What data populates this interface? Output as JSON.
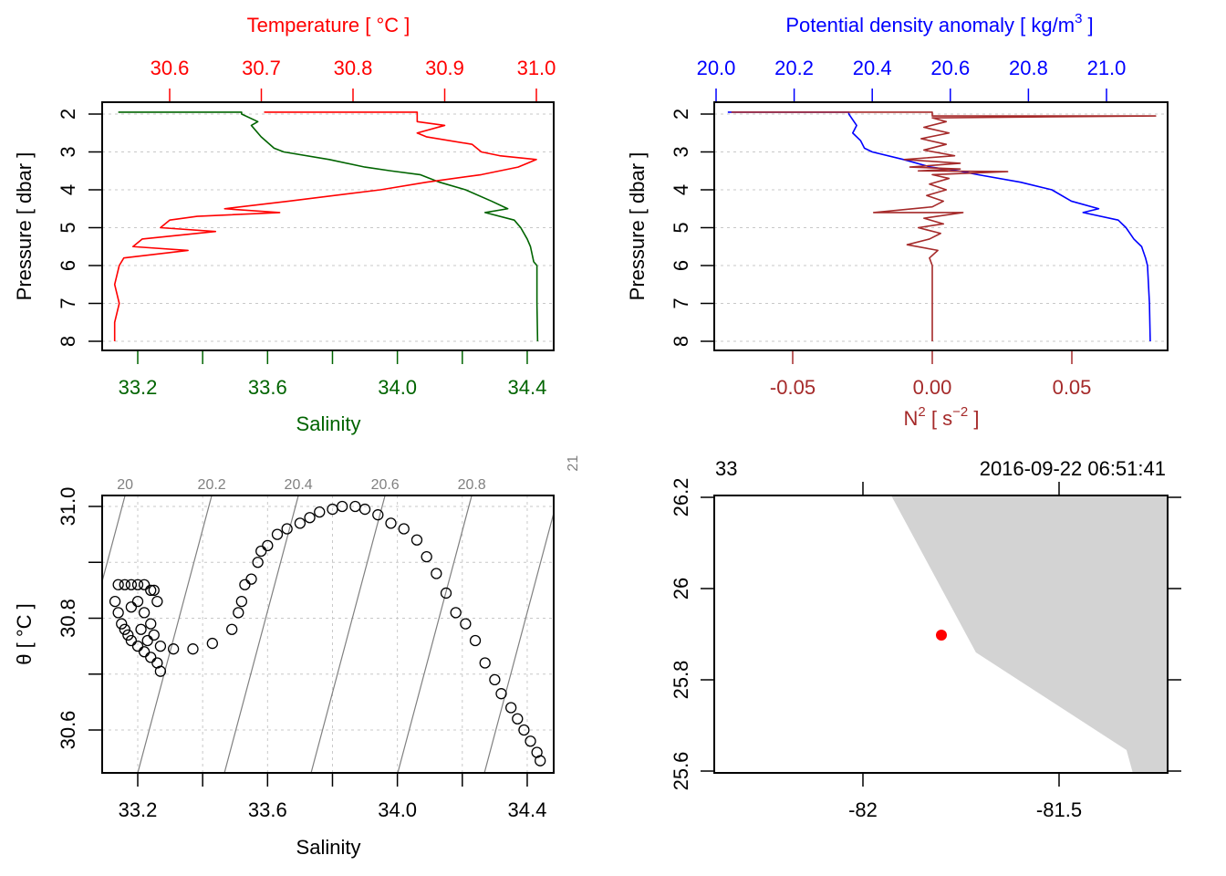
{
  "colors": {
    "temperature": "#ff0000",
    "salinity": "#006400",
    "density": "#0000ff",
    "n2": "#a52a2a",
    "land": "#d3d3d3",
    "station": "#ff0000",
    "isopycnal": "#808080"
  },
  "chart_data": [
    {
      "type": "line",
      "title": "Temperature [ °C ]",
      "xlabel": "Salinity",
      "ylabel": "Pressure [ dbar ]",
      "temperature_ticks": [
        "30.6",
        "30.7",
        "30.8",
        "30.9",
        "31.0"
      ],
      "salinity_ticks": [
        "33.2",
        "33.6",
        "34.0",
        "34.4"
      ],
      "salinity_minor": [
        33.4,
        33.8,
        34.2
      ],
      "pressure_ticks": [
        "2",
        "3",
        "4",
        "5",
        "6",
        "7",
        "8"
      ],
      "ylim": [
        8,
        2
      ],
      "series": [
        {
          "name": "Temperature",
          "points": [
            [
              1.95,
              30.703
            ],
            [
              1.95,
              30.87
            ],
            [
              2.0,
              30.87
            ],
            [
              2.2,
              30.87
            ],
            [
              2.3,
              30.9
            ],
            [
              2.5,
              30.87
            ],
            [
              2.6,
              30.88
            ],
            [
              2.8,
              30.93
            ],
            [
              3.0,
              30.94
            ],
            [
              3.1,
              30.96
            ],
            [
              3.2,
              31.0
            ],
            [
              3.3,
              30.99
            ],
            [
              3.4,
              30.98
            ],
            [
              3.6,
              30.94
            ],
            [
              3.8,
              30.88
            ],
            [
              4.0,
              30.83
            ],
            [
              4.3,
              30.73
            ],
            [
              4.5,
              30.66
            ],
            [
              4.6,
              30.72
            ],
            [
              4.7,
              30.63
            ],
            [
              4.8,
              30.6
            ],
            [
              5.0,
              30.59
            ],
            [
              5.1,
              30.65
            ],
            [
              5.3,
              30.57
            ],
            [
              5.5,
              30.56
            ],
            [
              5.6,
              30.62
            ],
            [
              5.8,
              30.55
            ],
            [
              6.0,
              30.545
            ],
            [
              6.5,
              30.54
            ],
            [
              7.0,
              30.545
            ],
            [
              7.5,
              30.54
            ],
            [
              8.0,
              30.54
            ]
          ]
        },
        {
          "name": "Salinity",
          "points": [
            [
              1.95,
              33.14
            ],
            [
              1.95,
              33.52
            ],
            [
              2.0,
              33.52
            ],
            [
              2.2,
              33.57
            ],
            [
              2.3,
              33.55
            ],
            [
              2.6,
              33.58
            ],
            [
              2.9,
              33.62
            ],
            [
              3.0,
              33.65
            ],
            [
              3.2,
              33.79
            ],
            [
              3.4,
              33.9
            ],
            [
              3.5,
              33.98
            ],
            [
              3.6,
              34.07
            ],
            [
              3.8,
              34.13
            ],
            [
              4.0,
              34.21
            ],
            [
              4.3,
              34.29
            ],
            [
              4.5,
              34.34
            ],
            [
              4.6,
              34.27
            ],
            [
              4.8,
              34.36
            ],
            [
              5.0,
              34.38
            ],
            [
              5.3,
              34.4
            ],
            [
              5.5,
              34.41
            ],
            [
              5.9,
              34.42
            ],
            [
              6.0,
              34.43
            ],
            [
              7.0,
              34.43
            ],
            [
              8.0,
              34.432
            ]
          ]
        }
      ]
    },
    {
      "type": "line",
      "title": "Potential density anomaly [ kg/m",
      "title_sup": "3",
      "title_end": " ]",
      "xlabel": "N",
      "xlabel_sup1": "2",
      "xlabel_mid": " [ s",
      "xlabel_sup2": "−2",
      "xlabel_end": " ]",
      "ylabel": "Pressure [ dbar ]",
      "density_ticks": [
        "20.0",
        "20.2",
        "20.4",
        "20.6",
        "20.8",
        "21.0"
      ],
      "n2_ticks": [
        "-0.05",
        "0.00",
        "0.05"
      ],
      "pressure_ticks": [
        "2",
        "3",
        "4",
        "5",
        "6",
        "7",
        "8"
      ],
      "ylim": [
        8,
        2
      ],
      "series": [
        {
          "name": "Potential density anomaly",
          "points": [
            [
              1.95,
              20.03
            ],
            [
              1.95,
              20.34
            ],
            [
              2.0,
              20.34
            ],
            [
              2.3,
              20.36
            ],
            [
              2.5,
              20.35
            ],
            [
              2.7,
              20.37
            ],
            [
              2.9,
              20.38
            ],
            [
              3.0,
              20.4
            ],
            [
              3.2,
              20.48
            ],
            [
              3.4,
              20.55
            ],
            [
              3.5,
              20.62
            ],
            [
              3.6,
              20.67
            ],
            [
              3.8,
              20.78
            ],
            [
              4.0,
              20.86
            ],
            [
              4.3,
              20.91
            ],
            [
              4.5,
              20.98
            ],
            [
              4.6,
              20.94
            ],
            [
              4.8,
              21.03
            ],
            [
              5.0,
              21.05
            ],
            [
              5.3,
              21.07
            ],
            [
              5.5,
              21.09
            ],
            [
              5.8,
              21.1
            ],
            [
              6.0,
              21.105
            ],
            [
              7.0,
              21.11
            ],
            [
              8.0,
              21.112
            ]
          ]
        },
        {
          "name": "N2",
          "points": [
            [
              1.95,
              -0.072
            ],
            [
              1.95,
              0.0
            ],
            [
              2.05,
              0.0
            ],
            [
              2.05,
              0.08
            ],
            [
              2.1,
              0.0
            ],
            [
              2.2,
              0.005
            ],
            [
              2.35,
              -0.003
            ],
            [
              2.5,
              0.006
            ],
            [
              2.65,
              -0.004
            ],
            [
              2.8,
              0.005
            ],
            [
              2.95,
              -0.003
            ],
            [
              3.1,
              0.008
            ],
            [
              3.2,
              -0.01
            ],
            [
              3.3,
              0.01
            ],
            [
              3.4,
              -0.008
            ],
            [
              3.45,
              0.01
            ],
            [
              3.5,
              -0.005
            ],
            [
              3.52,
              0.027
            ],
            [
              3.6,
              0.0
            ],
            [
              3.7,
              0.006
            ],
            [
              3.85,
              -0.001
            ],
            [
              4.0,
              0.005
            ],
            [
              4.15,
              -0.002
            ],
            [
              4.3,
              0.004
            ],
            [
              4.45,
              0.0
            ],
            [
              4.6,
              -0.021
            ],
            [
              4.6,
              0.011
            ],
            [
              4.75,
              -0.003
            ],
            [
              4.9,
              0.004
            ],
            [
              5.0,
              -0.005
            ],
            [
              5.15,
              0.003
            ],
            [
              5.3,
              -0.001
            ],
            [
              5.45,
              -0.009
            ],
            [
              5.6,
              0.002
            ],
            [
              5.8,
              -0.001
            ],
            [
              6.0,
              0.0
            ],
            [
              7.0,
              0.0
            ],
            [
              8.0,
              0.0
            ]
          ]
        }
      ]
    },
    {
      "type": "scatter",
      "xlabel": "Salinity",
      "ylabel": "θ [ °C ]",
      "salinity_ticks": [
        "33.2",
        "33.6",
        "34.0",
        "34.4"
      ],
      "theta_ticks": [
        "30.6",
        "30.8",
        "31.0"
      ],
      "isopycnal_labels": [
        "20",
        "20.2",
        "20.4",
        "20.6",
        "20.8",
        "21"
      ],
      "isopycnal_levels": [
        20.0,
        20.2,
        20.4,
        20.6,
        20.8,
        21.0
      ],
      "points": [
        [
          33.14,
          30.86
        ],
        [
          33.16,
          30.86
        ],
        [
          33.18,
          30.86
        ],
        [
          33.2,
          30.86
        ],
        [
          33.22,
          30.86
        ],
        [
          33.24,
          30.85
        ],
        [
          33.13,
          30.83
        ],
        [
          33.14,
          30.81
        ],
        [
          33.15,
          30.79
        ],
        [
          33.16,
          30.78
        ],
        [
          33.17,
          30.77
        ],
        [
          33.18,
          30.76
        ],
        [
          33.2,
          30.75
        ],
        [
          33.22,
          30.74
        ],
        [
          33.24,
          30.73
        ],
        [
          33.26,
          30.72
        ],
        [
          33.27,
          30.705
        ],
        [
          33.2,
          30.83
        ],
        [
          33.22,
          30.81
        ],
        [
          33.24,
          30.79
        ],
        [
          33.25,
          30.77
        ],
        [
          33.27,
          30.75
        ],
        [
          33.18,
          30.82
        ],
        [
          33.21,
          30.78
        ],
        [
          33.23,
          30.76
        ],
        [
          33.26,
          30.83
        ],
        [
          33.25,
          30.85
        ],
        [
          33.31,
          30.745
        ],
        [
          33.37,
          30.745
        ],
        [
          33.43,
          30.755
        ],
        [
          33.49,
          30.78
        ],
        [
          33.51,
          30.81
        ],
        [
          33.52,
          30.83
        ],
        [
          33.53,
          30.86
        ],
        [
          33.55,
          30.87
        ],
        [
          33.57,
          30.9
        ],
        [
          33.58,
          30.92
        ],
        [
          33.6,
          30.93
        ],
        [
          33.63,
          30.95
        ],
        [
          33.66,
          30.96
        ],
        [
          33.7,
          30.97
        ],
        [
          33.73,
          30.98
        ],
        [
          33.76,
          30.99
        ],
        [
          33.8,
          30.995
        ],
        [
          33.83,
          31.0
        ],
        [
          33.87,
          31.0
        ],
        [
          33.9,
          30.995
        ],
        [
          33.94,
          30.985
        ],
        [
          33.98,
          30.97
        ],
        [
          34.02,
          30.96
        ],
        [
          34.06,
          30.94
        ],
        [
          34.09,
          30.91
        ],
        [
          34.12,
          30.88
        ],
        [
          34.15,
          30.845
        ],
        [
          34.18,
          30.81
        ],
        [
          34.21,
          30.79
        ],
        [
          34.24,
          30.76
        ],
        [
          34.27,
          30.72
        ],
        [
          34.3,
          30.69
        ],
        [
          34.32,
          30.665
        ],
        [
          34.35,
          30.64
        ],
        [
          34.37,
          30.62
        ],
        [
          34.39,
          30.6
        ],
        [
          34.41,
          30.58
        ],
        [
          34.43,
          30.56
        ],
        [
          34.44,
          30.545
        ]
      ]
    },
    {
      "type": "map",
      "station": "33",
      "datetime": "2016-09-22 06:51:41",
      "lon_ticks": [
        "-82",
        "-81.5"
      ],
      "lat_ticks": [
        "26.2",
        "26",
        "25.8",
        "25.6"
      ],
      "land_polygon": [
        [
          -81.928,
          26.204
        ],
        [
          -81.712,
          25.86
        ],
        [
          -81.328,
          25.646
        ],
        [
          -81.312,
          25.596
        ],
        [
          -81.223,
          25.596
        ],
        [
          -81.223,
          26.204
        ]
      ],
      "station_location": [
        -81.8,
        25.898
      ]
    }
  ]
}
